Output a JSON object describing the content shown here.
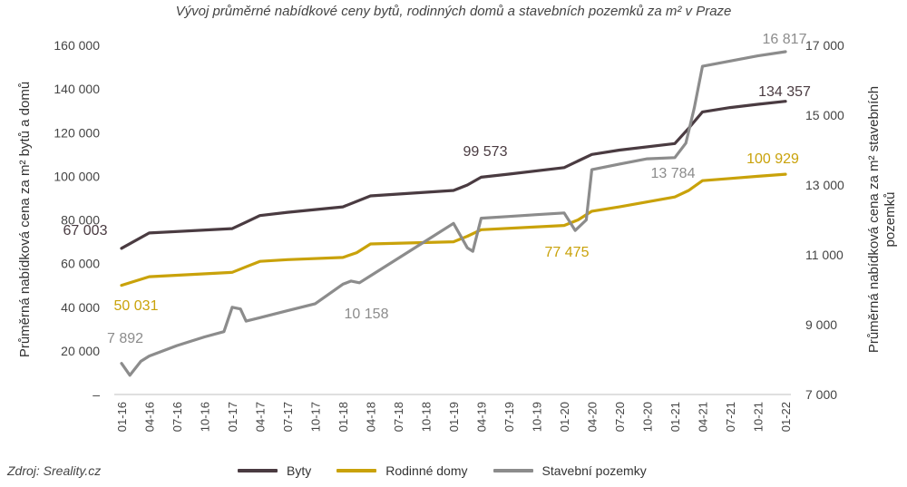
{
  "chart_data": {
    "type": "line",
    "title": "Vývoj průměrné nabídkové ceny bytů, rodinných domů a stavebních pozemků za m² v Praze",
    "ylabel": "Průměrná nabídková cena za m² bytů a domů",
    "y2label": "Průměrná nabídková cena za m² stavebních pozemků",
    "ylim": [
      0,
      160000
    ],
    "y2lim": [
      7000,
      17000
    ],
    "yticks": [
      "–",
      "20 000",
      "40 000",
      "60 000",
      "80 000",
      "100 000",
      "120 000",
      "140 000",
      "160 000"
    ],
    "y2ticks": [
      "7 000",
      "9 000",
      "11 000",
      "13 000",
      "15 000",
      "17 000"
    ],
    "xticks": [
      "01-16",
      "04-16",
      "07-16",
      "10-16",
      "01-17",
      "04-17",
      "07-17",
      "10-17",
      "01-18",
      "04-18",
      "07-18",
      "10-18",
      "01-19",
      "04-19",
      "07-19",
      "10-19",
      "01-20",
      "04-20",
      "07-20",
      "10-20",
      "01-21",
      "04-21",
      "07-21",
      "10-21",
      "01-22"
    ],
    "series": [
      {
        "name": "Byty",
        "axis": "left",
        "color": "#4a3b41",
        "points": [
          [
            0,
            67003
          ],
          [
            1,
            74000
          ],
          [
            4,
            76000
          ],
          [
            4.5,
            79000
          ],
          [
            5,
            82000
          ],
          [
            6,
            83500
          ],
          [
            8,
            86000
          ],
          [
            9,
            91000
          ],
          [
            12,
            93500
          ],
          [
            12.5,
            96000
          ],
          [
            13,
            99573
          ],
          [
            14,
            101000
          ],
          [
            16,
            104000
          ],
          [
            16.5,
            107000
          ],
          [
            17,
            110000
          ],
          [
            18,
            112000
          ],
          [
            20,
            115000
          ],
          [
            20.5,
            122000
          ],
          [
            21,
            129500
          ],
          [
            22,
            131500
          ],
          [
            23,
            133000
          ],
          [
            24,
            134357
          ]
        ]
      },
      {
        "name": "Rodinné domy",
        "axis": "left",
        "color": "#c9a20a",
        "points": [
          [
            0,
            50031
          ],
          [
            1,
            54000
          ],
          [
            4,
            56000
          ],
          [
            4.5,
            58500
          ],
          [
            5,
            61000
          ],
          [
            6,
            61800
          ],
          [
            8,
            62800
          ],
          [
            8.5,
            65000
          ],
          [
            9,
            69000
          ],
          [
            12,
            70000
          ],
          [
            12.5,
            72500
          ],
          [
            13,
            75500
          ],
          [
            16,
            77475
          ],
          [
            16.5,
            80000
          ],
          [
            17,
            84000
          ],
          [
            18,
            86000
          ],
          [
            20,
            90500
          ],
          [
            20.5,
            93500
          ],
          [
            21,
            98000
          ],
          [
            22,
            99000
          ],
          [
            23,
            100000
          ],
          [
            24,
            100929
          ]
        ]
      },
      {
        "name": "Stavební pozemky",
        "axis": "right",
        "color": "#8c8c8c",
        "points": [
          [
            0,
            7892
          ],
          [
            0.3,
            7550
          ],
          [
            0.7,
            7950
          ],
          [
            1,
            8100
          ],
          [
            2,
            8400
          ],
          [
            3,
            8650
          ],
          [
            3.7,
            8800
          ],
          [
            4,
            9500
          ],
          [
            4.3,
            9450
          ],
          [
            4.5,
            9100
          ],
          [
            5,
            9200
          ],
          [
            6,
            9400
          ],
          [
            7,
            9600
          ],
          [
            8,
            10158
          ],
          [
            8.3,
            10250
          ],
          [
            8.6,
            10200
          ],
          [
            9,
            10400
          ],
          [
            10,
            10900
          ],
          [
            11,
            11400
          ],
          [
            12,
            11900
          ],
          [
            12.5,
            11200
          ],
          [
            12.7,
            11100
          ],
          [
            13,
            12050
          ],
          [
            14,
            12100
          ],
          [
            15,
            12150
          ],
          [
            16,
            12200
          ],
          [
            16.4,
            11700
          ],
          [
            16.8,
            12000
          ],
          [
            17,
            13440
          ],
          [
            18,
            13600
          ],
          [
            19,
            13750
          ],
          [
            20,
            13784
          ],
          [
            20.4,
            14200
          ],
          [
            20.7,
            15200
          ],
          [
            21,
            16400
          ],
          [
            22,
            16550
          ],
          [
            23,
            16700
          ],
          [
            24,
            16817
          ]
        ]
      }
    ],
    "annotations": [
      {
        "text": "67 003",
        "series": 0
      },
      {
        "text": "50 031",
        "series": 1
      },
      {
        "text": "7 892",
        "series": 2
      },
      {
        "text": "10 158",
        "series": 2
      },
      {
        "text": "99 573",
        "series": 0
      },
      {
        "text": "77 475",
        "series": 1
      },
      {
        "text": "13 784",
        "series": 2
      },
      {
        "text": "134 357",
        "series": 0
      },
      {
        "text": "100 929",
        "series": 1
      },
      {
        "text": "16 817",
        "series": 2
      }
    ],
    "legend": "bottom",
    "grid": false
  },
  "source": "Zdroj: Sreality.cz"
}
